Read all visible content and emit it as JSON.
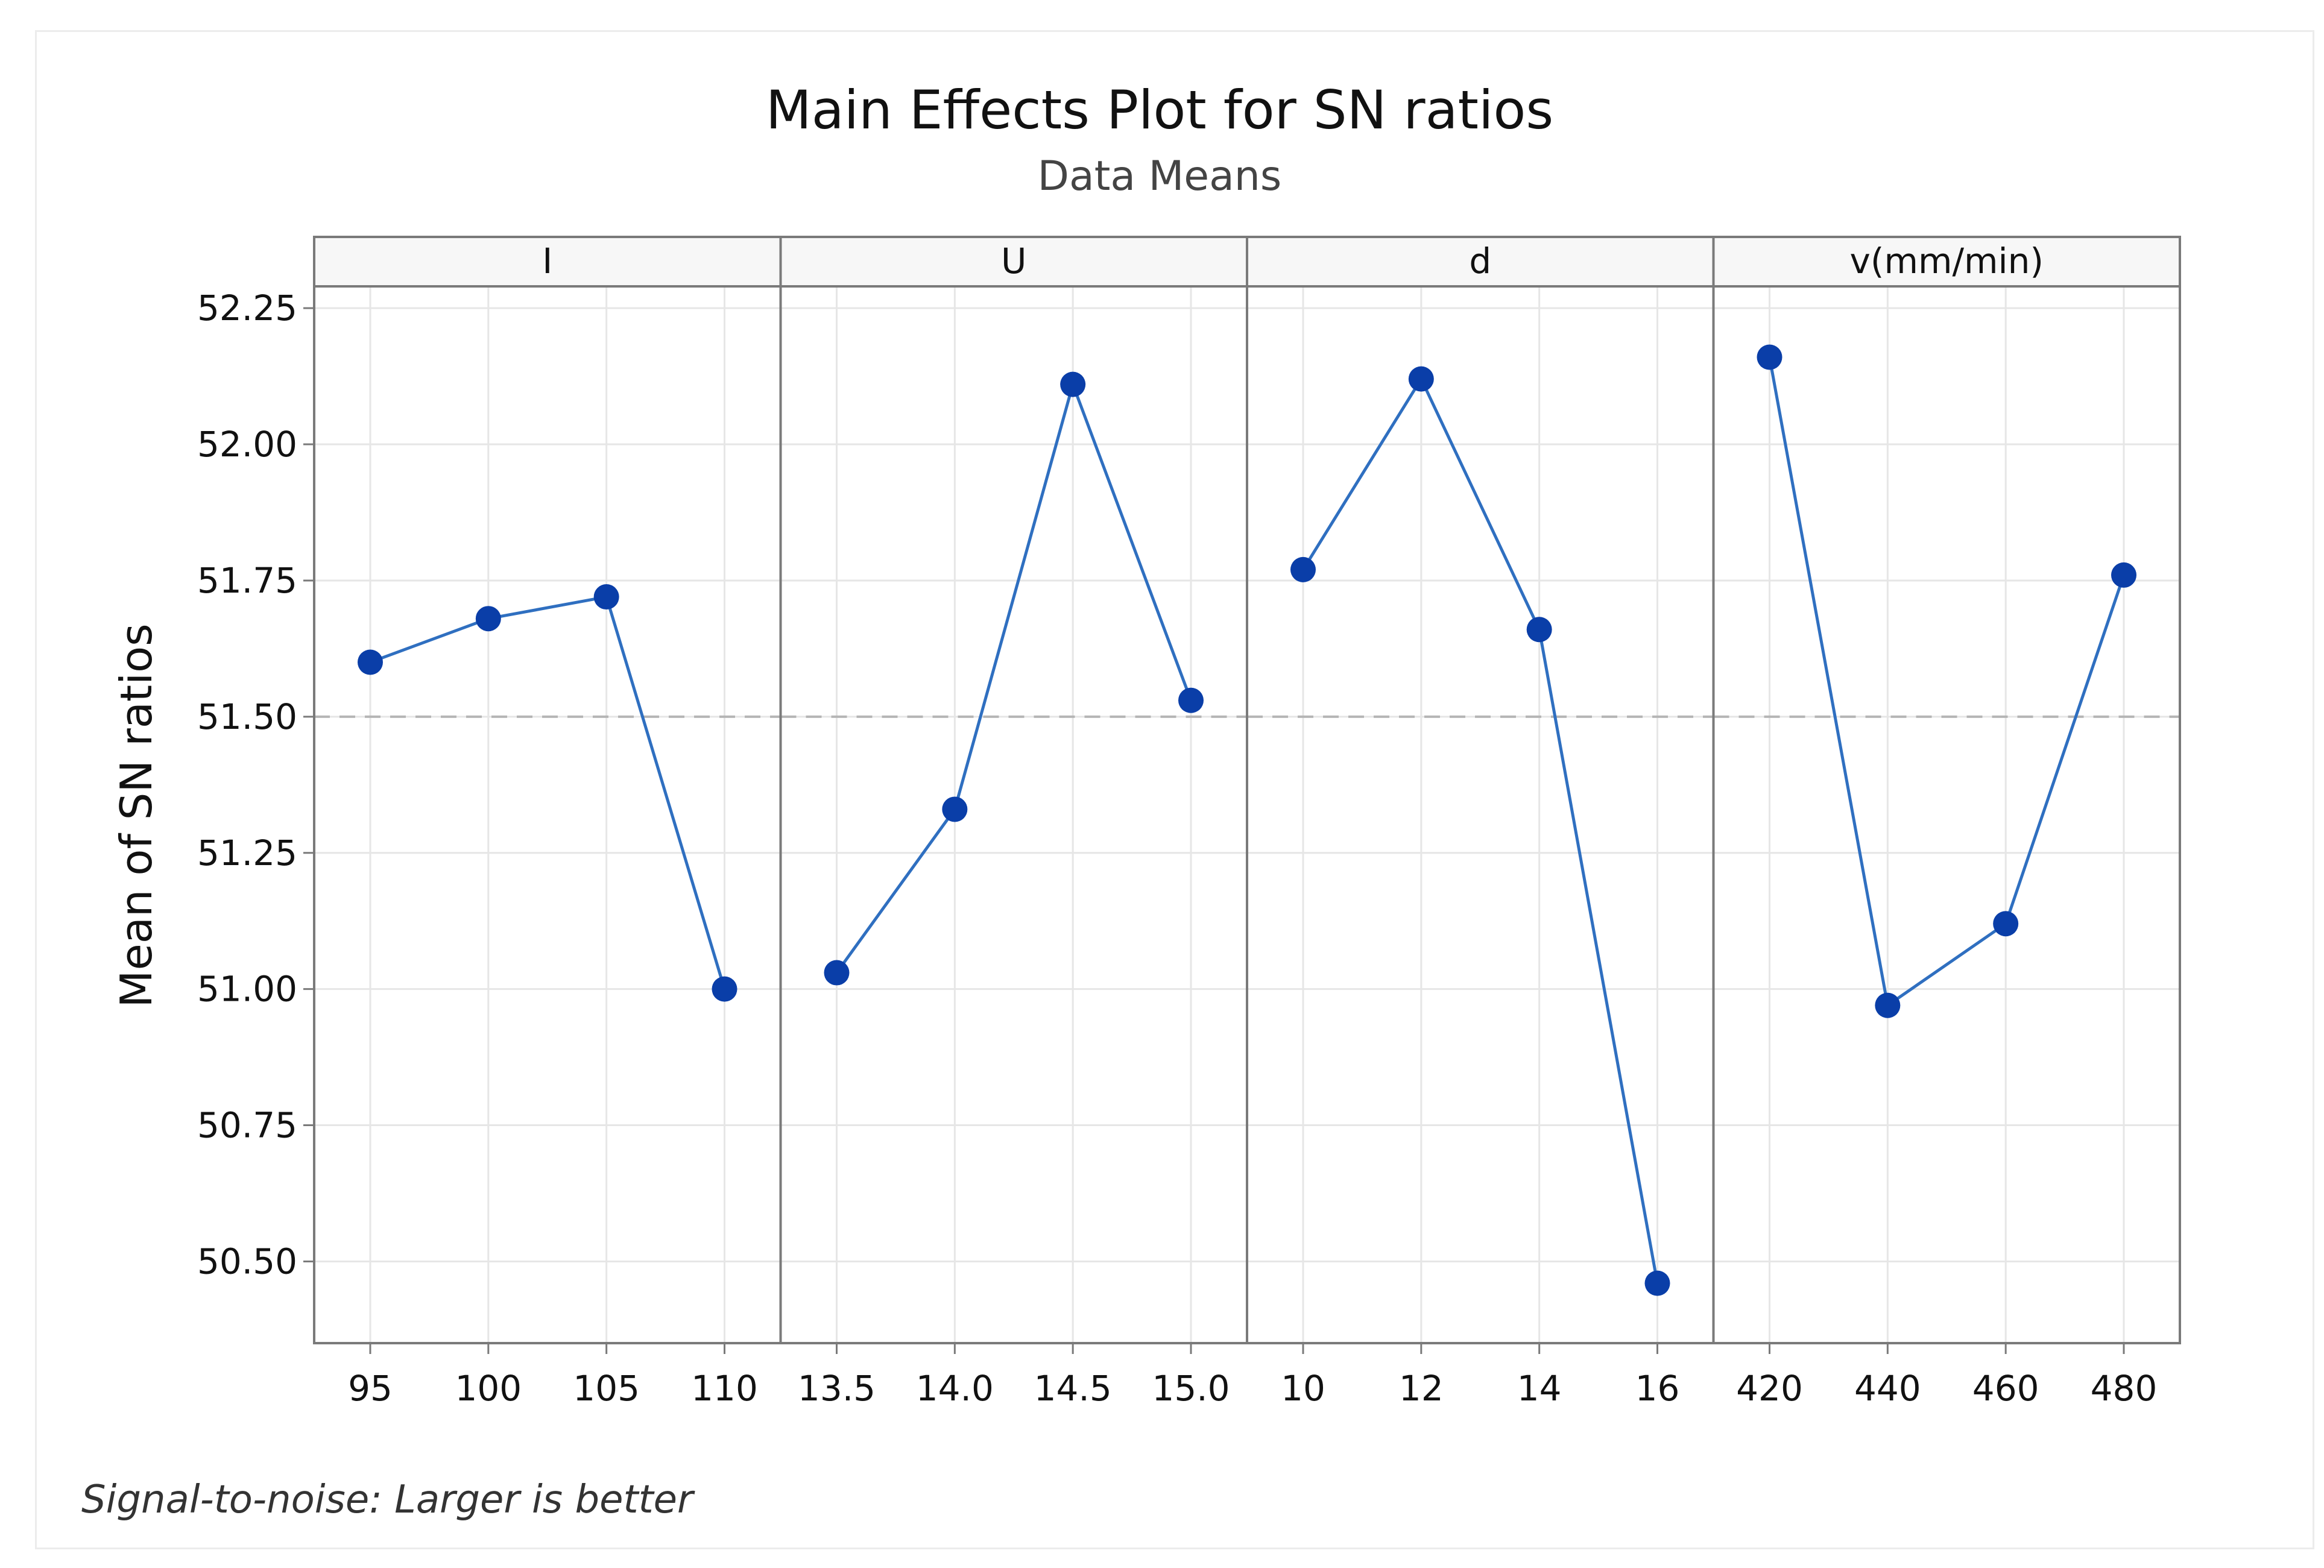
{
  "chart_data": {
    "type": "line",
    "title": "Main Effects Plot for SN ratios",
    "subtitle": "Data Means",
    "ylabel": "Mean of SN ratios",
    "ylim": [
      50.35,
      52.29
    ],
    "yticks": [
      50.5,
      50.75,
      51.0,
      51.25,
      51.5,
      51.75,
      52.0,
      52.25
    ],
    "ytick_labels": [
      "50.50",
      "50.75",
      "51.00",
      "51.25",
      "51.50",
      "51.75",
      "52.00",
      "52.25"
    ],
    "reference_line": 51.5,
    "grid": true,
    "footnote": "Signal-to-noise: Larger is better",
    "colors": {
      "series": "#2f6fc0",
      "marker": "#0a3ea8",
      "reference": "#b5b5b5",
      "grid": "#e6e6e6",
      "frame": "#7a7a7a"
    },
    "panels": [
      {
        "name": "I",
        "categories": [
          "95",
          "100",
          "105",
          "110"
        ],
        "values": [
          51.6,
          51.68,
          51.72,
          51.0
        ]
      },
      {
        "name": "U",
        "categories": [
          "13.5",
          "14.0",
          "14.5",
          "15.0"
        ],
        "values": [
          51.03,
          51.33,
          52.11,
          51.53
        ]
      },
      {
        "name": "d",
        "categories": [
          "10",
          "12",
          "14",
          "16"
        ],
        "values": [
          51.77,
          52.12,
          51.66,
          50.46
        ]
      },
      {
        "name": "v(mm/min)",
        "categories": [
          "420",
          "440",
          "460",
          "480"
        ],
        "values": [
          52.16,
          50.97,
          51.12,
          51.76
        ]
      }
    ]
  }
}
